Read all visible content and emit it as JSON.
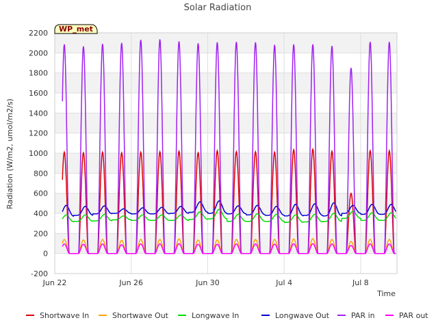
{
  "chart_data": {
    "type": "line",
    "title": "Solar Radiation",
    "xlabel": "Time",
    "ylabel": "Radiation (W/m2, umol/m2/s)",
    "annotation": "WP_met",
    "ylim": [
      -200,
      2200
    ],
    "yticks": [
      -200,
      0,
      200,
      400,
      600,
      800,
      1000,
      1200,
      1400,
      1600,
      1800,
      2000,
      2200
    ],
    "xlim": [
      0,
      17.9
    ],
    "xticks": [
      {
        "pos": 0,
        "label": "Jun 22"
      },
      {
        "pos": 4,
        "label": "Jun 26"
      },
      {
        "pos": 8,
        "label": "Jun 30"
      },
      {
        "pos": 12,
        "label": "Jul 4"
      },
      {
        "pos": 16,
        "label": "Jul 8"
      }
    ],
    "grid": true,
    "legend_position": "bottom",
    "days_start": 0.4,
    "series": [
      {
        "name": "Shortwave In",
        "color": "#dd0000",
        "kind": "solar",
        "night": 0,
        "daily_peaks": [
          1010,
          1005,
          1010,
          1005,
          1010,
          1015,
          1020,
          1005,
          1025,
          1015,
          1015,
          1010,
          1035,
          1040,
          1020,
          600,
          1025
        ]
      },
      {
        "name": "Shortwave Out",
        "color": "#ffa500",
        "kind": "solar",
        "night": 0,
        "daily_peaks": [
          140,
          135,
          140,
          130,
          140,
          140,
          145,
          135,
          135,
          140,
          140,
          140,
          145,
          148,
          140,
          120,
          140
        ]
      },
      {
        "name": "Longwave In",
        "color": "#00dd00",
        "kind": "thermal",
        "daily_peaks": [
          385,
          385,
          390,
          375,
          385,
          385,
          385,
          415,
          440,
          390,
          395,
          390,
          385,
          390,
          400,
          420,
          405
        ],
        "daily_mins": [
          315,
          320,
          325,
          335,
          330,
          330,
          330,
          340,
          345,
          320,
          320,
          320,
          310,
          315,
          320,
          350,
          330
        ]
      },
      {
        "name": "Longwave Out",
        "color": "#0000cc",
        "kind": "thermal",
        "daily_peaks": [
          480,
          470,
          475,
          445,
          455,
          460,
          470,
          515,
          525,
          475,
          480,
          470,
          490,
          495,
          505,
          480,
          490
        ],
        "daily_mins": [
          370,
          380,
          395,
          400,
          395,
          395,
          400,
          410,
          400,
          395,
          385,
          380,
          375,
          380,
          375,
          400,
          390
        ]
      },
      {
        "name": "PAR in",
        "color": "#a020f0",
        "kind": "solar",
        "night": 0,
        "daily_peaks": [
          2085,
          2065,
          2090,
          2100,
          2130,
          2135,
          2115,
          2095,
          2105,
          2110,
          2105,
          2080,
          2085,
          2085,
          2070,
          1850,
          2110
        ]
      },
      {
        "name": "PAR out",
        "color": "#ff00ff",
        "kind": "solar",
        "night": 0,
        "daily_peaks": [
          95,
          92,
          95,
          88,
          95,
          96,
          98,
          92,
          92,
          95,
          95,
          93,
          97,
          98,
          95,
          80,
          95
        ]
      }
    ]
  }
}
